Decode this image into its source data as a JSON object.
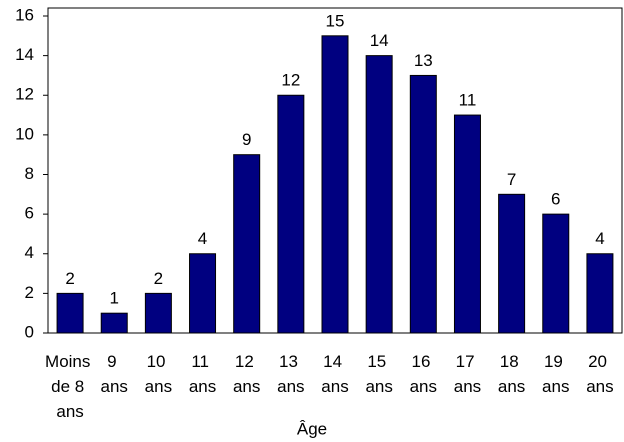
{
  "chart_data": {
    "type": "bar",
    "x_label": "Âge",
    "categories": [
      "Moins de 8 ans",
      "9 ans",
      "10 ans",
      "11 ans",
      "12 ans",
      "13 ans",
      "14 ans",
      "15 ans",
      "16 ans",
      "17 ans",
      "18 ans",
      "19 ans",
      "20 ans"
    ],
    "values": [
      2,
      1,
      2,
      4,
      9,
      12,
      15,
      14,
      13,
      11,
      7,
      6,
      4
    ],
    "color": "#000080",
    "ylim": [
      0,
      16
    ],
    "yticks": [
      0,
      2,
      4,
      6,
      8,
      10,
      12,
      14,
      16
    ],
    "grid": false
  }
}
